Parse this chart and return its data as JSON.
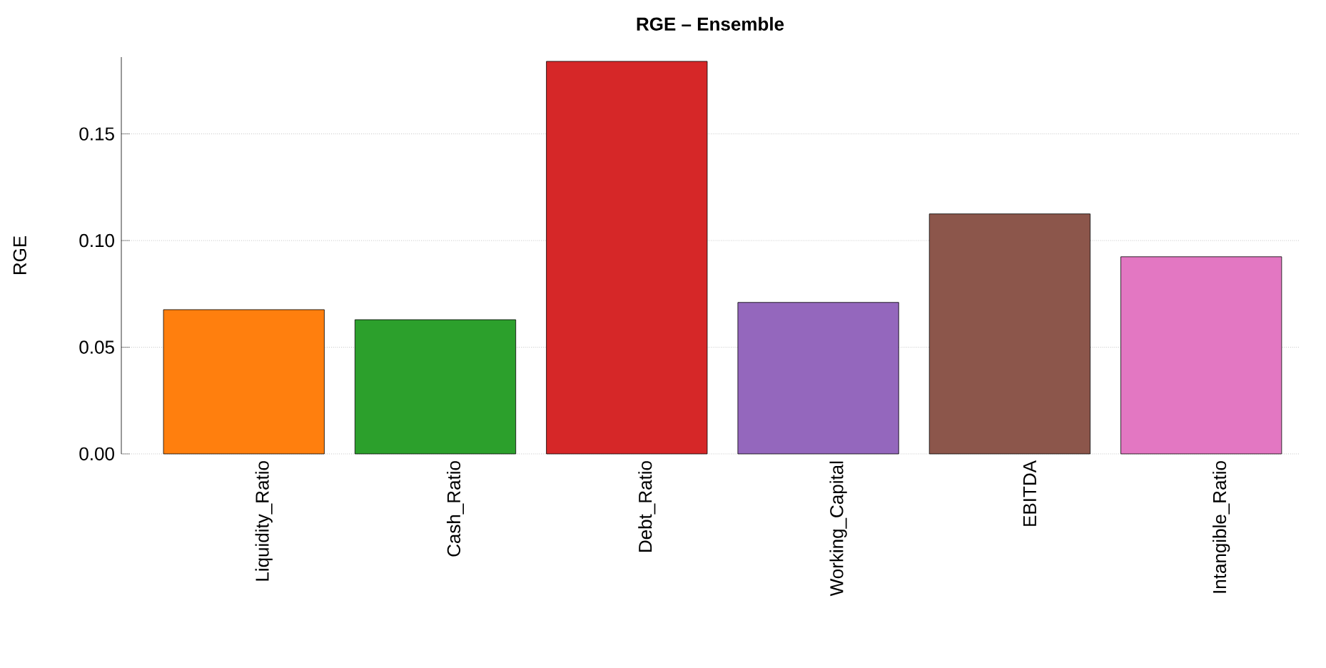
{
  "chart_data": {
    "type": "bar",
    "title": "RGE – Ensemble",
    "ylabel": "RGE",
    "categories": [
      "Liquidity_Ratio",
      "Cash_Ratio",
      "Debt_Ratio",
      "Working_Capital",
      "EBITDA",
      "Intangible_Ratio"
    ],
    "values": [
      0.0676,
      0.0629,
      0.184,
      0.071,
      0.1125,
      0.0924
    ],
    "colors": [
      "#ff7f0e",
      "#2ca02c",
      "#d62728",
      "#9467bd",
      "#8c564b",
      "#e377c2"
    ],
    "ylim": [
      0,
      0.186
    ],
    "yticks": [
      {
        "value": 0,
        "label": "0.00"
      },
      {
        "value": 0.05,
        "label": "0.05"
      },
      {
        "value": 0.1,
        "label": "0.10"
      },
      {
        "value": 0.15,
        "label": "0.15"
      }
    ],
    "grid": true
  }
}
